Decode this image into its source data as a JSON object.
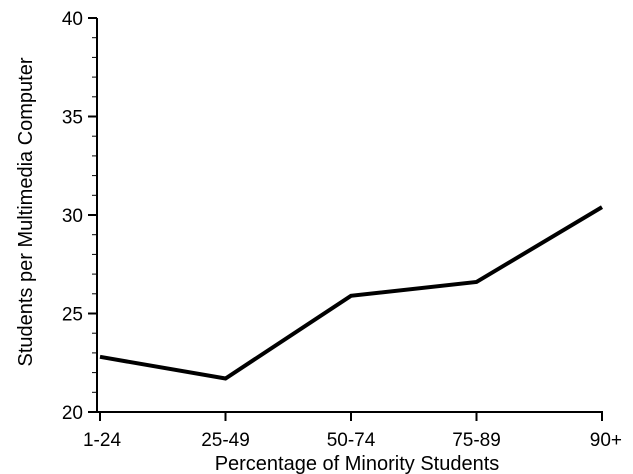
{
  "chart_data": {
    "type": "line",
    "categories": [
      "1-24",
      "25-49",
      "50-74",
      "75-89",
      "90+"
    ],
    "series": [
      {
        "values": [
          22.8,
          21.7,
          25.9,
          26.6,
          30.4
        ]
      }
    ],
    "xlabel": "Percentage of Minority Students",
    "ylabel": "Students per Multimedia Computer",
    "ylim": [
      20,
      40
    ],
    "yticks": [
      "20",
      "25",
      "30",
      "35",
      "40"
    ],
    "grid": false,
    "colors": {
      "line": "#000000",
      "axis": "#000000"
    }
  }
}
